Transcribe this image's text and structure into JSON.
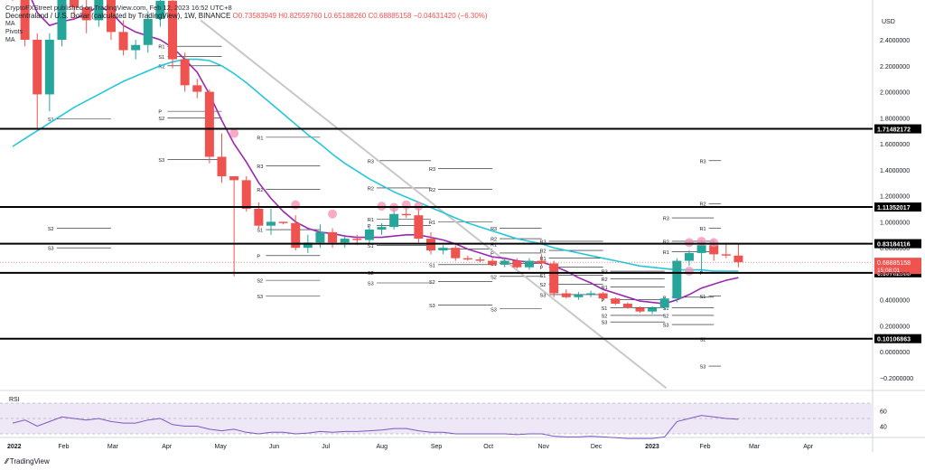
{
  "header": {
    "published": "CryptoFXStreet published on TradingView.com, Feb 12, 2023 16:52 UTC+8",
    "symbol": "Decentraland / U.S. Dollar (calculated by TradingView), 1W, BINANCE",
    "ohlc": "O0.73583949 H0.82559760 L0.65188260 C0.68885158 −0.04631420 (−6.30%)",
    "indicators": [
      "MA",
      "Pivots",
      "MA"
    ]
  },
  "footer": {
    "brand": "TradingView"
  },
  "colors": {
    "up": "#26a69a",
    "down": "#ef5350",
    "ma_fast": "#9c27b0",
    "ma_slow": "#26c6da",
    "trendline": "#c8c8c8",
    "level": "#000000",
    "rsi": "#7e57c2",
    "rsi_band": "#ede7f6"
  },
  "chart_data": [
    {
      "type": "candlestick",
      "title": "",
      "y_axis_label": "USD",
      "ylim": [
        -0.2,
        2.6
      ],
      "y_ticks": [
        2.4,
        2.2,
        2.0,
        1.8,
        1.6,
        1.4,
        1.2,
        1.0,
        0.8,
        0.6,
        0.4,
        0.2,
        0.0,
        -0.2
      ],
      "y_tick_labels": [
        "2.4000000",
        "2.2000000",
        "2.0000000",
        "1.8000000",
        "1.6000000",
        "1.4000000",
        "1.2000000",
        "1.0000000",
        "0.8000000",
        "0.6000000",
        "0.4000000",
        "0.2000000",
        "0.0000000",
        "−0.2000000"
      ],
      "x_start": "2022-01-03",
      "x_labels": [
        {
          "date": "2022-01-01",
          "text": "2022"
        },
        {
          "date": "2022-02-01",
          "text": "Feb"
        },
        {
          "date": "2022-03-01",
          "text": "Mar"
        },
        {
          "date": "2022-04-01",
          "text": "Apr"
        },
        {
          "date": "2022-05-01",
          "text": "May"
        },
        {
          "date": "2022-06-01",
          "text": "Jun"
        },
        {
          "date": "2022-07-01",
          "text": "Jul"
        },
        {
          "date": "2022-08-01",
          "text": "Aug"
        },
        {
          "date": "2022-09-01",
          "text": "Sep"
        },
        {
          "date": "2022-10-01",
          "text": "Oct"
        },
        {
          "date": "2022-11-01",
          "text": "Nov"
        },
        {
          "date": "2022-12-01",
          "text": "Dec"
        },
        {
          "date": "2023-01-01",
          "text": "2023"
        },
        {
          "date": "2023-02-01",
          "text": "Feb"
        },
        {
          "date": "2023-03-01",
          "text": "Mar"
        },
        {
          "date": "2023-04-01",
          "text": "Apr"
        }
      ],
      "candles": [
        {
          "o": 3.05,
          "h": 3.2,
          "l": 2.7,
          "c": 2.75
        },
        {
          "o": 2.75,
          "h": 2.85,
          "l": 2.35,
          "c": 2.4
        },
        {
          "o": 2.4,
          "h": 2.45,
          "l": 1.72,
          "c": 1.98
        },
        {
          "o": 1.98,
          "h": 2.45,
          "l": 1.85,
          "c": 2.4
        },
        {
          "o": 2.4,
          "h": 3.0,
          "l": 2.35,
          "c": 2.92
        },
        {
          "o": 2.92,
          "h": 3.05,
          "l": 2.55,
          "c": 2.65
        },
        {
          "o": 2.65,
          "h": 2.8,
          "l": 2.45,
          "c": 2.55
        },
        {
          "o": 2.55,
          "h": 2.88,
          "l": 2.5,
          "c": 2.78
        },
        {
          "o": 2.78,
          "h": 2.86,
          "l": 2.4,
          "c": 2.46
        },
        {
          "o": 2.46,
          "h": 2.55,
          "l": 2.28,
          "c": 2.32
        },
        {
          "o": 2.32,
          "h": 2.4,
          "l": 2.25,
          "c": 2.36
        },
        {
          "o": 2.36,
          "h": 2.62,
          "l": 2.3,
          "c": 2.56
        },
        {
          "o": 2.56,
          "h": 2.78,
          "l": 2.5,
          "c": 2.7
        },
        {
          "o": 2.7,
          "h": 2.75,
          "l": 2.18,
          "c": 2.25
        },
        {
          "o": 2.25,
          "h": 2.3,
          "l": 2.0,
          "c": 2.05
        },
        {
          "o": 2.05,
          "h": 2.1,
          "l": 1.95,
          "c": 2.0
        },
        {
          "o": 2.0,
          "h": 2.02,
          "l": 1.45,
          "c": 1.5
        },
        {
          "o": 1.5,
          "h": 1.68,
          "l": 1.3,
          "c": 1.35
        },
        {
          "o": 1.35,
          "h": 1.35,
          "l": 0.58,
          "c": 1.32
        },
        {
          "o": 1.32,
          "h": 1.35,
          "l": 1.08,
          "c": 1.1
        },
        {
          "o": 1.1,
          "h": 1.15,
          "l": 0.95,
          "c": 0.97
        },
        {
          "o": 0.97,
          "h": 1.1,
          "l": 0.9,
          "c": 1.0
        },
        {
          "o": 1.0,
          "h": 1.0,
          "l": 0.98,
          "c": 0.99
        },
        {
          "o": 0.99,
          "h": 1.05,
          "l": 0.78,
          "c": 0.8
        },
        {
          "o": 0.8,
          "h": 0.9,
          "l": 0.76,
          "c": 0.84
        },
        {
          "o": 0.84,
          "h": 0.98,
          "l": 0.8,
          "c": 0.92
        },
        {
          "o": 0.92,
          "h": 0.95,
          "l": 0.8,
          "c": 0.84
        },
        {
          "o": 0.84,
          "h": 0.9,
          "l": 0.8,
          "c": 0.87
        },
        {
          "o": 0.87,
          "h": 0.9,
          "l": 0.82,
          "c": 0.86
        },
        {
          "o": 0.86,
          "h": 0.96,
          "l": 0.83,
          "c": 0.94
        },
        {
          "o": 0.94,
          "h": 0.99,
          "l": 0.9,
          "c": 0.96
        },
        {
          "o": 0.96,
          "h": 1.12,
          "l": 0.94,
          "c": 1.06
        },
        {
          "o": 1.06,
          "h": 1.1,
          "l": 1.03,
          "c": 1.05
        },
        {
          "o": 1.05,
          "h": 1.12,
          "l": 0.84,
          "c": 0.87
        },
        {
          "o": 0.87,
          "h": 0.92,
          "l": 0.75,
          "c": 0.78
        },
        {
          "o": 0.78,
          "h": 0.82,
          "l": 0.75,
          "c": 0.8
        },
        {
          "o": 0.8,
          "h": 0.82,
          "l": 0.7,
          "c": 0.72
        },
        {
          "o": 0.72,
          "h": 0.74,
          "l": 0.7,
          "c": 0.71
        },
        {
          "o": 0.71,
          "h": 0.73,
          "l": 0.69,
          "c": 0.7
        },
        {
          "o": 0.7,
          "h": 0.72,
          "l": 0.66,
          "c": 0.67
        },
        {
          "o": 0.67,
          "h": 0.71,
          "l": 0.65,
          "c": 0.7
        },
        {
          "o": 0.7,
          "h": 0.72,
          "l": 0.64,
          "c": 0.65
        },
        {
          "o": 0.65,
          "h": 0.72,
          "l": 0.63,
          "c": 0.7
        },
        {
          "o": 0.7,
          "h": 0.75,
          "l": 0.66,
          "c": 0.68
        },
        {
          "o": 0.68,
          "h": 0.7,
          "l": 0.42,
          "c": 0.45
        },
        {
          "o": 0.45,
          "h": 0.48,
          "l": 0.41,
          "c": 0.42
        },
        {
          "o": 0.42,
          "h": 0.46,
          "l": 0.4,
          "c": 0.44
        },
        {
          "o": 0.44,
          "h": 0.47,
          "l": 0.42,
          "c": 0.45
        },
        {
          "o": 0.45,
          "h": 0.46,
          "l": 0.4,
          "c": 0.41
        },
        {
          "o": 0.41,
          "h": 0.42,
          "l": 0.36,
          "c": 0.37
        },
        {
          "o": 0.37,
          "h": 0.38,
          "l": 0.33,
          "c": 0.34
        },
        {
          "o": 0.34,
          "h": 0.35,
          "l": 0.3,
          "c": 0.31
        },
        {
          "o": 0.31,
          "h": 0.35,
          "l": 0.29,
          "c": 0.34
        },
        {
          "o": 0.34,
          "h": 0.42,
          "l": 0.32,
          "c": 0.41
        },
        {
          "o": 0.41,
          "h": 0.72,
          "l": 0.38,
          "c": 0.7
        },
        {
          "o": 0.7,
          "h": 0.78,
          "l": 0.66,
          "c": 0.76
        },
        {
          "o": 0.76,
          "h": 0.86,
          "l": 0.62,
          "c": 0.82
        },
        {
          "o": 0.82,
          "h": 0.86,
          "l": 0.7,
          "c": 0.75
        },
        {
          "o": 0.75,
          "h": 0.84,
          "l": 0.72,
          "c": 0.74
        },
        {
          "o": 0.74,
          "h": 0.83,
          "l": 0.65,
          "c": 0.69
        }
      ],
      "ma_fast": [
        2.98,
        2.83,
        2.61,
        2.51,
        2.54,
        2.56,
        2.6,
        2.66,
        2.61,
        2.51,
        2.46,
        2.43,
        2.4,
        2.34,
        2.25,
        2.15,
        1.98,
        1.78,
        1.6,
        1.46,
        1.3,
        1.18,
        1.08,
        1.0,
        0.95,
        0.92,
        0.91,
        0.89,
        0.88,
        0.88,
        0.88,
        0.89,
        0.9,
        0.9,
        0.88,
        0.86,
        0.83,
        0.79,
        0.76,
        0.73,
        0.72,
        0.7,
        0.69,
        0.69,
        0.66,
        0.62,
        0.57,
        0.53,
        0.48,
        0.45,
        0.42,
        0.39,
        0.38,
        0.37,
        0.4,
        0.44,
        0.49,
        0.52,
        0.55,
        0.57
      ],
      "ma_slow": [
        1.58,
        1.64,
        1.7,
        1.76,
        1.82,
        1.88,
        1.93,
        1.98,
        2.03,
        2.08,
        2.12,
        2.16,
        2.2,
        2.23,
        2.25,
        2.25,
        2.24,
        2.2,
        2.14,
        2.07,
        1.99,
        1.91,
        1.83,
        1.75,
        1.67,
        1.6,
        1.52,
        1.45,
        1.39,
        1.33,
        1.28,
        1.23,
        1.19,
        1.15,
        1.11,
        1.07,
        1.03,
        0.99,
        0.96,
        0.93,
        0.9,
        0.87,
        0.85,
        0.83,
        0.8,
        0.78,
        0.76,
        0.74,
        0.72,
        0.7,
        0.68,
        0.66,
        0.65,
        0.64,
        0.63,
        0.63,
        0.63,
        0.62,
        0.62,
        0.62
      ],
      "levels": [
        {
          "value": 1.71482172,
          "label": "1.71482172"
        },
        {
          "value": 1.11352017,
          "label": "1.11352017"
        },
        {
          "value": 0.83184116,
          "label": "0.83184116"
        },
        {
          "value": 0.60762508,
          "label": "0.60762508"
        },
        {
          "value": 0.10106863,
          "label": "0.10106863"
        }
      ],
      "last_price": {
        "value": 0.68885158,
        "label": "0.68885158",
        "countdown": "15:08:01"
      },
      "trendline": {
        "from": {
          "date": "2022-04-20",
          "value": 2.55
        },
        "to": {
          "date": "2023-01-10",
          "value": -0.28
        }
      },
      "pivot_sets": [
        {
          "start": "2022-01-24",
          "end": "2022-02-28",
          "R1": 3.1,
          "P": 2.75,
          "S1": 1.79,
          "S2": 0.95,
          "S3": 0.8
        },
        {
          "start": "2022-03-28",
          "end": "2022-05-02",
          "R1": 2.35,
          "R2": 2.2,
          "S1": 2.27,
          "P": 1.85,
          "S2": 1.8,
          "S3": 1.48
        },
        {
          "start": "2022-05-23",
          "end": "2022-06-27",
          "R1": 1.65,
          "R3": 1.43,
          "R2": 1.25,
          "S1": 0.94,
          "S2": 0.55,
          "S3": 0.43,
          "P": 0.74
        },
        {
          "start": "2022-07-25",
          "end": "2022-08-29",
          "R3": 1.47,
          "R2": 1.26,
          "R1": 1.02,
          "P": 0.97,
          "S1": 0.82,
          "S2": 0.61,
          "S3": 0.53
        },
        {
          "start": "2022-08-29",
          "end": "2022-10-03",
          "R3": 1.41,
          "R2": 1.25,
          "R1": 1.0,
          "P": 0.79,
          "S1": 0.67,
          "S2": 0.54,
          "S3": 0.36
        },
        {
          "start": "2022-10-03",
          "end": "2022-10-31",
          "R3": 0.95,
          "R2": 0.87,
          "R1": 0.83,
          "P": 0.76,
          "S1": 0.68,
          "S2": 0.58,
          "S3": 0.33
        },
        {
          "start": "2022-10-31",
          "end": "2022-12-05",
          "R3": 0.85,
          "R2": 0.78,
          "R1": 0.72,
          "P": 0.65,
          "S1": 0.59,
          "S2": 0.52,
          "S3": 0.44
        },
        {
          "start": "2022-12-05",
          "end": "2023-01-09",
          "R3": 0.62,
          "R2": 0.56,
          "R1": 0.5,
          "P": 0.4,
          "S1": 0.34,
          "S2": 0.28,
          "S3": 0.23
        },
        {
          "start": "2023-01-09",
          "end": "2023-02-06",
          "R3": 1.03,
          "R2": 0.85,
          "R1": 0.77,
          "P": 0.42,
          "S1": 0.34,
          "S2": 0.28,
          "S3": 0.21
        },
        {
          "start": "2023-01-30",
          "end": "2023-02-10",
          "R3": 1.47,
          "R2": 1.14,
          "R1": 0.95,
          "P": 0.61,
          "S1": 0.43,
          "S2": 0.1,
          "S3": -0.11
        }
      ],
      "reversal_markers": [
        {
          "date": "2022-05-09",
          "value": 1.68
        },
        {
          "date": "2022-06-13",
          "value": 1.13
        },
        {
          "date": "2022-07-04",
          "value": 1.06
        },
        {
          "date": "2022-08-01",
          "value": 1.12
        },
        {
          "date": "2022-08-08",
          "value": 1.11
        },
        {
          "date": "2022-08-15",
          "value": 1.13
        },
        {
          "date": "2022-08-22",
          "value": 1.12
        },
        {
          "date": "2023-01-23",
          "value": 0.84
        },
        {
          "date": "2023-01-30",
          "value": 0.85
        },
        {
          "date": "2023-02-06",
          "value": 0.84
        },
        {
          "date": "2023-01-23",
          "value": 0.62
        }
      ]
    },
    {
      "type": "line",
      "title": "",
      "series_label": "RSI",
      "ylim": [
        20,
        80
      ],
      "y_ticks": [
        60,
        40
      ],
      "band": [
        30,
        70
      ],
      "values": [
        44,
        48,
        40,
        46,
        52,
        50,
        48,
        50,
        46,
        44,
        44,
        48,
        50,
        42,
        40,
        40,
        36,
        34,
        36,
        32,
        30,
        32,
        32,
        30,
        31,
        33,
        32,
        33,
        33,
        34,
        35,
        37,
        37,
        34,
        32,
        32,
        30,
        30,
        30,
        30,
        30,
        29,
        30,
        30,
        27,
        26,
        26,
        27,
        26,
        25,
        24,
        24,
        24,
        26,
        46,
        50,
        54,
        52,
        50,
        49
      ]
    }
  ]
}
